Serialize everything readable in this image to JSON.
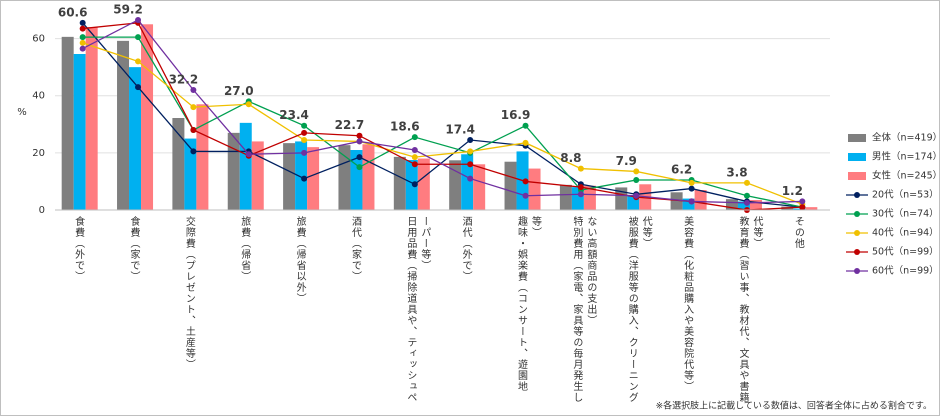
{
  "chart_data": {
    "type": "combo",
    "y_label": "%",
    "annotation": "※各選択肢上に記載している数値は、回答者全体に占める割合です。",
    "categories": [
      "食費（外で）",
      "食費（家で）",
      "交際費（プレゼント、土産等）",
      "旅費（帰省）",
      "旅費（帰省以外）",
      "酒代（家で）",
      "日用品費（掃除道具や、ティッシュペーパー等）",
      "酒代（外で）",
      "趣味・娯楽費（コンサート、遊園地等）",
      "特別費用（家電、家具等の毎月発生しない高額商品の支出）",
      "被服費（洋服等の購入、クリーニング代等）",
      "美容費（化粧品購入や美容院代等）",
      "教育費（習い事、教材代、文具や書籍代等）",
      "その他"
    ],
    "ylim": [
      0,
      70
    ],
    "yticks": [
      0,
      20,
      40,
      60
    ],
    "series": [
      {
        "name": "全体（n=419）",
        "type": "bar",
        "color": "#7f7f7f",
        "values": [
          60.6,
          59.2,
          32.2,
          27.0,
          23.4,
          22.7,
          18.6,
          17.4,
          16.9,
          8.8,
          7.9,
          6.2,
          3.8,
          1.2
        ],
        "value_labels": [
          "60.6",
          "59.2",
          "32.2",
          "27.0",
          "23.4",
          "22.7",
          "18.6",
          "17.4",
          "16.9",
          "8.8",
          "7.9",
          "6.2",
          "3.8",
          "1.2"
        ]
      },
      {
        "name": "男性（n=174）",
        "type": "bar",
        "color": "#00b0f0",
        "values": [
          54.6,
          50,
          25,
          30.5,
          24,
          21,
          17.5,
          19.5,
          20.5,
          8,
          5,
          4,
          3,
          0.5
        ]
      },
      {
        "name": "女性（n=245）",
        "type": "bar",
        "color": "#ff7c80",
        "values": [
          64,
          65,
          37,
          24,
          22,
          23,
          18,
          16,
          14.5,
          8.5,
          9,
          7,
          3.5,
          1
        ]
      },
      {
        "name": "20代（n=53）",
        "type": "line",
        "color": "#002060",
        "values": [
          65.5,
          43,
          20.5,
          20.5,
          11,
          18.5,
          9,
          24.5,
          22.5,
          9,
          5.5,
          7.5,
          3,
          1
        ]
      },
      {
        "name": "30代（n=74）",
        "type": "line",
        "color": "#00a050",
        "values": [
          60.5,
          60.5,
          28,
          38,
          29.5,
          15,
          25.5,
          20,
          29.5,
          7,
          10.5,
          10.5,
          5,
          1
        ]
      },
      {
        "name": "40代（n=94）",
        "type": "line",
        "color": "#f0c000",
        "values": [
          58.5,
          52,
          36,
          37,
          24.5,
          24,
          18.5,
          20.5,
          23.5,
          14.5,
          13.5,
          9.5,
          9.5,
          2
        ]
      },
      {
        "name": "50代（n=99）",
        "type": "line",
        "color": "#c00000",
        "values": [
          63.5,
          65.5,
          28,
          19,
          27,
          26,
          16,
          16,
          10,
          8,
          4.5,
          3,
          0,
          1
        ]
      },
      {
        "name": "60代（n=99）",
        "type": "line",
        "color": "#7030a0",
        "values": [
          56.5,
          66.5,
          42,
          19.5,
          20,
          24,
          21,
          11,
          5,
          5.5,
          5,
          3,
          2.5,
          3
        ]
      }
    ]
  }
}
